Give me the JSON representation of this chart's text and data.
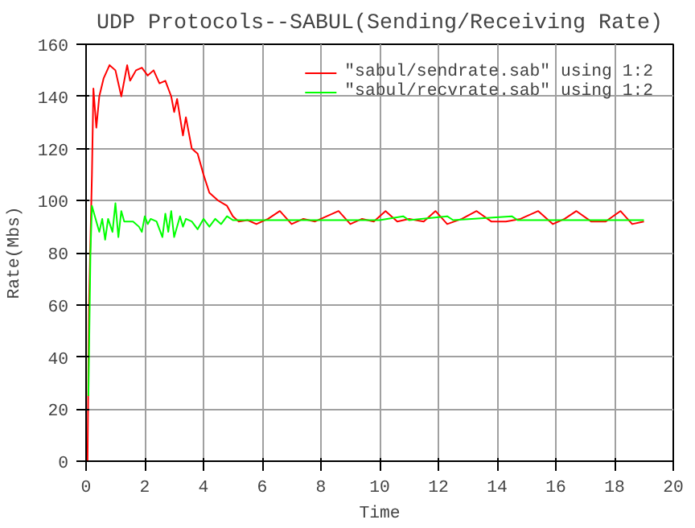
{
  "chart_data": {
    "type": "line",
    "title": "UDP Protocols--SABUL(Sending/Receiving Rate)",
    "xlabel": "Time",
    "ylabel": "Rate(Mbs)",
    "xlim": [
      0,
      20
    ],
    "ylim": [
      0,
      160
    ],
    "xticks": [
      0,
      2,
      4,
      6,
      8,
      10,
      12,
      14,
      16,
      18,
      20
    ],
    "yticks": [
      0,
      20,
      40,
      60,
      80,
      100,
      120,
      140,
      160
    ],
    "grid": true,
    "legend": "top right",
    "series": [
      {
        "name": "\"sabul/sendrate.sab\" using 1:2",
        "color": "#ff0000",
        "x": [
          0.05,
          0.1,
          0.2,
          0.25,
          0.35,
          0.45,
          0.6,
          0.8,
          1.0,
          1.2,
          1.4,
          1.5,
          1.7,
          1.9,
          2.1,
          2.3,
          2.5,
          2.7,
          2.9,
          3.0,
          3.1,
          3.3,
          3.4,
          3.6,
          3.8,
          4.0,
          4.2,
          4.5,
          4.8,
          5.0,
          5.2,
          5.5,
          5.8,
          6.2,
          6.6,
          7.0,
          7.4,
          7.8,
          8.2,
          8.6,
          9.0,
          9.4,
          9.8,
          10.2,
          10.6,
          11.0,
          11.5,
          11.9,
          12.3,
          12.8,
          13.3,
          13.8,
          14.3,
          14.8,
          15.4,
          15.9,
          16.3,
          16.7,
          17.2,
          17.7,
          18.2,
          18.6,
          19.0
        ],
        "values": [
          0,
          60,
          110,
          143,
          128,
          140,
          147,
          152,
          150,
          140,
          152,
          146,
          150,
          151,
          148,
          150,
          145,
          146,
          140,
          134,
          139,
          125,
          132,
          120,
          118,
          110,
          103,
          100,
          98,
          94,
          92,
          92.5,
          91,
          93,
          96,
          91,
          93,
          92,
          94,
          96,
          91,
          93,
          92,
          96,
          92,
          93,
          92,
          96,
          91,
          93,
          96,
          92,
          92,
          93,
          96,
          91,
          93,
          96,
          92,
          92,
          96,
          91,
          92
        ]
      },
      {
        "name": "\"sabul/recvrate.sab\" using 1:2",
        "color": "#00ff00",
        "x": [
          0.08,
          0.15,
          0.2,
          0.35,
          0.45,
          0.55,
          0.65,
          0.75,
          0.9,
          1.0,
          1.1,
          1.2,
          1.3,
          1.6,
          1.8,
          1.9,
          2.0,
          2.1,
          2.2,
          2.4,
          2.6,
          2.7,
          2.8,
          2.9,
          3.0,
          3.2,
          3.3,
          3.4,
          3.6,
          3.8,
          4.0,
          4.2,
          4.4,
          4.6,
          4.8,
          5.0,
          6.0,
          8.0,
          10.0,
          10.8,
          11.0,
          12.3,
          12.5,
          14.5,
          14.7,
          16.0,
          18.0,
          19.0
        ],
        "values": [
          25,
          80,
          98,
          92,
          88,
          93,
          85,
          93,
          88,
          99,
          86,
          96,
          92,
          92,
          90,
          88,
          94,
          91,
          93,
          92,
          86,
          95,
          88,
          96,
          86,
          94,
          90,
          93,
          92,
          89,
          93,
          90,
          93,
          91,
          94,
          92.5,
          92.5,
          92.5,
          92.5,
          94,
          92.5,
          94,
          92.5,
          94,
          92.5,
          92.5,
          92.5,
          92.5
        ]
      }
    ]
  }
}
